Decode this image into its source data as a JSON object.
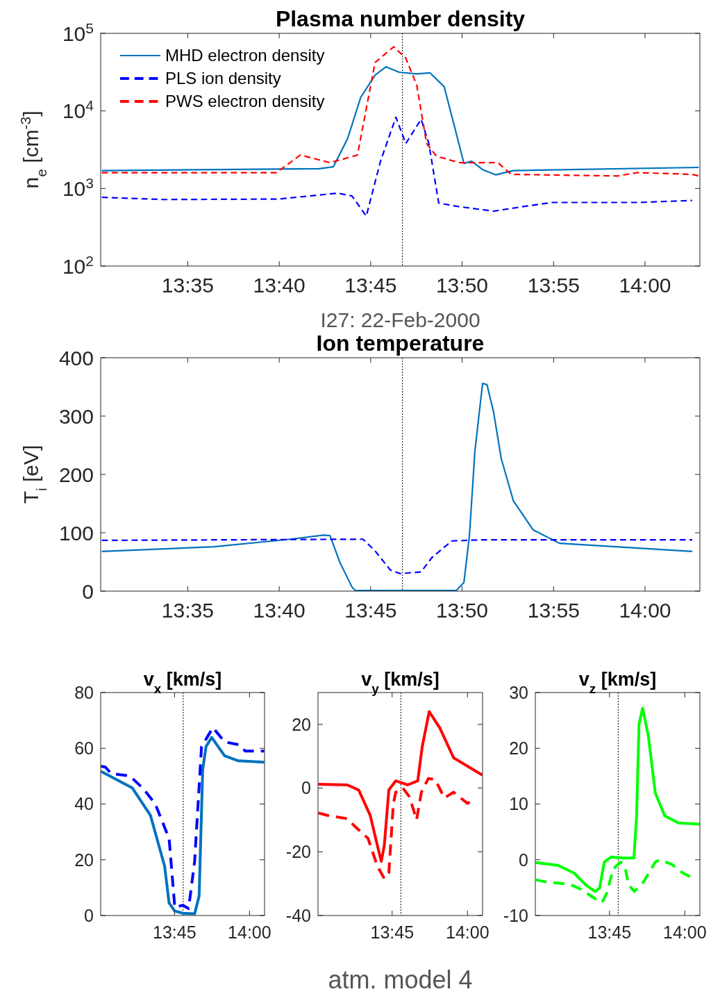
{
  "chart_data": [
    {
      "type": "line",
      "title": "Plasma number density",
      "xlabel": "I27: 22-Feb-2000",
      "ylabel": "n$_{e}$ [cm$^{-3}$]",
      "log": "y",
      "legend": "top left",
      "xlim": [
        13.504,
        14.05
      ],
      "xticks": [
        {
          "value": 13.5833,
          "label": "13:35"
        },
        {
          "value": 13.6667,
          "label": "13:40"
        },
        {
          "value": 13.75,
          "label": "13:45"
        },
        {
          "value": 13.8333,
          "label": "13:50"
        },
        {
          "value": 13.9167,
          "label": "13:55"
        },
        {
          "value": 14.0,
          "label": "14:00"
        }
      ],
      "ylim": [
        100,
        100000
      ],
      "yticks": [
        {
          "value": 100,
          "label": "10$^{2}$"
        },
        {
          "value": 1000,
          "label": "10$^{3}$"
        },
        {
          "value": 10000,
          "label": "10$^{4}$"
        },
        {
          "value": 100000,
          "label": "10$^{5}$"
        }
      ],
      "ref_lines": [
        {
          "axis": "x",
          "value": 13.779,
          "color": "#000000",
          "line_style": "dotted"
        }
      ],
      "series": [
        {
          "name": "MHD electron  density",
          "color": "#0072bd",
          "line_style": "solid",
          "x": [
            13.505,
            13.703,
            13.716,
            13.729,
            13.741,
            13.754,
            13.764,
            13.776,
            13.792,
            13.804,
            13.817,
            13.826,
            13.835,
            13.842,
            13.852,
            13.864,
            13.88,
            14.049
          ],
          "values": [
            1700,
            1800,
            1900,
            4400,
            15000,
            29000,
            37000,
            31500,
            30000,
            31000,
            20500,
            6600,
            2100,
            2250,
            1750,
            1500,
            1700,
            1870
          ]
        },
        {
          "name": "PLS ion density",
          "color": "#0000ff",
          "line_style": "dashed",
          "x": [
            13.505,
            13.561,
            13.666,
            13.72,
            13.733,
            13.746,
            13.759,
            13.773,
            13.782,
            13.796,
            13.803,
            13.812,
            13.828,
            13.862,
            13.891,
            13.915,
            13.993,
            14.043
          ],
          "values": [
            770,
            720,
            730,
            870,
            800,
            440,
            2250,
            8300,
            3800,
            7800,
            3800,
            650,
            590,
            510,
            590,
            660,
            660,
            700
          ]
        },
        {
          "name": "PWS electron density",
          "color": "#ff0000",
          "line_style": "dashed",
          "x": [
            13.505,
            13.664,
            13.686,
            13.713,
            13.738,
            13.754,
            13.771,
            13.782,
            13.792,
            13.801,
            13.81,
            13.831,
            13.866,
            13.878,
            13.975,
            13.993,
            14.043,
            14.049
          ],
          "values": [
            1600,
            1600,
            2700,
            2150,
            2700,
            42000,
            67000,
            48000,
            21500,
            3800,
            2600,
            2150,
            2150,
            1520,
            1450,
            1600,
            1520,
            1450
          ]
        }
      ]
    },
    {
      "type": "line",
      "title": "Ion temperature",
      "ylabel": "T$_{i}$  [eV]",
      "xlim": [
        13.504,
        14.05
      ],
      "xticks": [
        {
          "value": 13.5833,
          "label": "13:35"
        },
        {
          "value": 13.6667,
          "label": "13:40"
        },
        {
          "value": 13.75,
          "label": "13:45"
        },
        {
          "value": 13.8333,
          "label": "13:50"
        },
        {
          "value": 13.9167,
          "label": "13:55"
        },
        {
          "value": 14.0,
          "label": "14:00"
        }
      ],
      "ylim": [
        0,
        400
      ],
      "yticks": [
        0,
        100,
        200,
        300,
        400
      ],
      "ref_lines": [
        {
          "axis": "x",
          "value": 13.779,
          "color": "#000000",
          "line_style": "dotted"
        }
      ],
      "series": [
        {
          "color": "#0072bd",
          "line_style": "solid",
          "x": [
            13.505,
            13.607,
            13.677,
            13.707,
            13.713,
            13.722,
            13.733,
            13.736,
            13.828,
            13.835,
            13.84,
            13.845,
            13.852,
            13.856,
            13.862,
            13.869,
            13.88,
            13.898,
            13.922,
            14.043
          ],
          "values": [
            68,
            76,
            89,
            96,
            95,
            49,
            7,
            1,
            1,
            15,
            95,
            240,
            356,
            354,
            307,
            227,
            155,
            105,
            82,
            68
          ]
        },
        {
          "color": "#0000ff",
          "line_style": "dashed",
          "x": [
            13.505,
            13.743,
            13.754,
            13.768,
            13.777,
            13.796,
            13.806,
            13.824,
            13.852,
            14.043
          ],
          "values": [
            87,
            89,
            69,
            36,
            30,
            33,
            58,
            86,
            88,
            88
          ]
        }
      ]
    },
    {
      "type": "line",
      "title": "v$_{x}$ [km/s]",
      "xlim": [
        13.504,
        14.05
      ],
      "xticks": [
        {
          "value": 13.75,
          "label": "13:45"
        },
        {
          "value": 14.0,
          "label": "14:00"
        }
      ],
      "ylim": [
        0,
        80
      ],
      "yticks": [
        0,
        20,
        40,
        60,
        80
      ],
      "ref_lines": [
        {
          "axis": "x",
          "value": 13.779,
          "color": "#000000",
          "line_style": "dotted"
        }
      ],
      "series": [
        {
          "color": "#0072bd",
          "line_style": "solid",
          "x": [
            13.505,
            13.609,
            13.67,
            13.717,
            13.732,
            13.751,
            13.778,
            13.817,
            13.832,
            13.844,
            13.855,
            13.874,
            13.917,
            13.963,
            14.049
          ],
          "values": [
            51.7,
            45.8,
            35.9,
            17.7,
            4.5,
            1.6,
            0.8,
            0.6,
            7,
            52.4,
            60.6,
            63.9,
            57.3,
            55.5,
            55
          ]
        },
        {
          "color": "#0000ff",
          "line_style": "dashed",
          "x": [
            13.505,
            13.52,
            13.539,
            13.601,
            13.647,
            13.686,
            13.732,
            13.751,
            13.778,
            13.797,
            13.817,
            13.84,
            13.878,
            13.917,
            13.963,
            13.986,
            14.049
          ],
          "values": [
            53.6,
            53.2,
            50.9,
            50.1,
            45.4,
            40,
            27.6,
            2.9,
            3.7,
            2.5,
            19.4,
            60.6,
            67.4,
            62.3,
            61.3,
            59,
            59
          ]
        }
      ]
    },
    {
      "type": "line",
      "title": "v$_{y}$ [km/s]",
      "xlabel": "atm. model 4",
      "xlim": [
        13.504,
        14.05
      ],
      "xticks": [
        {
          "value": 13.75,
          "label": "13:45"
        },
        {
          "value": 14.0,
          "label": "14:00"
        }
      ],
      "ylim": [
        -40,
        30
      ],
      "yticks": [
        -40,
        -20,
        0,
        20
      ],
      "ref_lines": [
        {
          "axis": "x",
          "value": 13.779,
          "color": "#000000",
          "line_style": "dotted"
        }
      ],
      "series": [
        {
          "color": "#ff0000",
          "line_style": "solid",
          "x": [
            13.505,
            13.601,
            13.639,
            13.677,
            13.701,
            13.714,
            13.724,
            13.739,
            13.762,
            13.801,
            13.835,
            13.85,
            13.873,
            13.908,
            13.954,
            14.049
          ],
          "values": [
            1.2,
            1.0,
            -0.6,
            -8.5,
            -18,
            -23,
            -18,
            -0.6,
            2.3,
            1.0,
            2.3,
            13.1,
            24,
            18.9,
            9.5,
            4.1
          ]
        },
        {
          "color": "#ff0000",
          "line_style": "dashed",
          "x": [
            13.505,
            13.532,
            13.601,
            13.624,
            13.67,
            13.701,
            13.724,
            13.739,
            13.754,
            13.762,
            13.785,
            13.808,
            13.831,
            13.847,
            13.87,
            13.893,
            13.923,
            13.954,
            14.0,
            14.016
          ],
          "values": [
            -7.8,
            -8.5,
            -9.6,
            -11.8,
            -15.8,
            -24.5,
            -28.4,
            -26.6,
            -4.9,
            -1.3,
            0.1,
            -2.8,
            -10,
            -1.3,
            3,
            2.7,
            -3.1,
            -1.3,
            -4.8,
            -3.9
          ]
        }
      ]
    },
    {
      "type": "line",
      "title": "v$_{z}$ [km/s]",
      "xlim": [
        13.504,
        14.05
      ],
      "xticks": [
        {
          "value": 13.75,
          "label": "13:45"
        },
        {
          "value": 14.0,
          "label": "14:00"
        }
      ],
      "ylim": [
        -10,
        30
      ],
      "yticks": [
        -10,
        0,
        10,
        20,
        30
      ],
      "ref_lines": [
        {
          "axis": "x",
          "value": 13.779,
          "color": "#000000",
          "line_style": "dotted"
        }
      ],
      "series": [
        {
          "color": "#00ff00",
          "line_style": "solid",
          "x": [
            13.505,
            13.579,
            13.633,
            13.671,
            13.702,
            13.717,
            13.733,
            13.756,
            13.794,
            13.831,
            13.84,
            13.848,
            13.86,
            13.879,
            13.902,
            13.933,
            13.979,
            14.049
          ],
          "values": [
            -0.5,
            -1,
            -2.4,
            -4.5,
            -5.7,
            -5.1,
            -0.4,
            0.5,
            0.3,
            0.3,
            7.9,
            24.3,
            27.2,
            22.2,
            12,
            7.9,
            6.6,
            6.4
          ]
        },
        {
          "color": "#00ff00",
          "line_style": "dashed",
          "x": [
            13.505,
            13.541,
            13.618,
            13.656,
            13.694,
            13.725,
            13.74,
            13.763,
            13.787,
            13.802,
            13.813,
            13.833,
            13.864,
            13.902,
            13.917,
            13.956,
            13.994,
            14.017
          ],
          "values": [
            -3.6,
            -4,
            -4.4,
            -5.3,
            -6.7,
            -7.7,
            -6.1,
            -1.6,
            -0.4,
            -1.4,
            -4.5,
            -5.7,
            -3.9,
            -0.4,
            0,
            -0.8,
            -2.4,
            -3
          ]
        }
      ]
    }
  ]
}
